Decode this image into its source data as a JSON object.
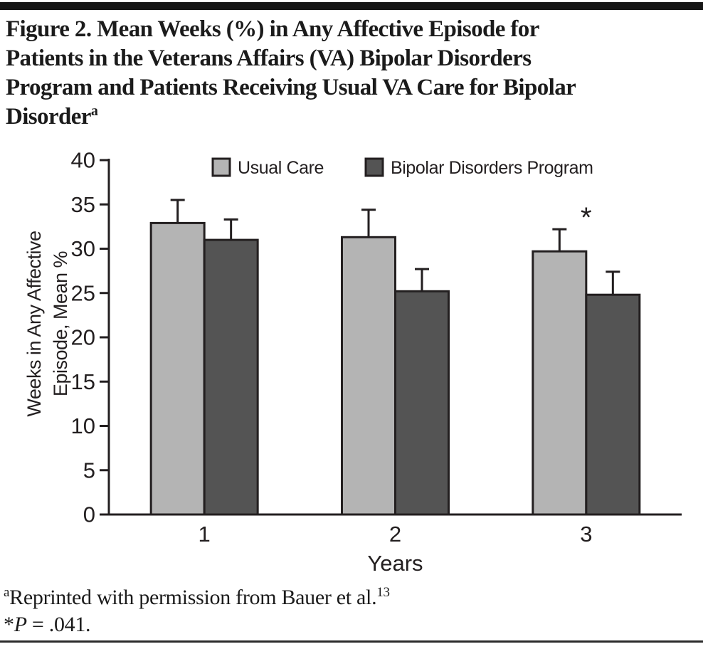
{
  "figure": {
    "title_lines": [
      "Figure 2. Mean Weeks (%) in Any Affective Episode for",
      "Patients in the Veterans Affairs (VA) Bipolar Disorders",
      "Program and Patients Receiving Usual VA Care for Bipolar"
    ],
    "title_last_line": "Disorder",
    "title_superscript": "a",
    "footnote_a": {
      "marker": "a",
      "text": "Reprinted with permission from Bauer et al.",
      "reference": "13"
    },
    "footnote_p": {
      "star": "*",
      "label": "P",
      "rest": " = .041."
    }
  },
  "chart_data": {
    "type": "bar",
    "title": "",
    "categories": [
      "1",
      "2",
      "3"
    ],
    "series": [
      {
        "name": "Usual Care",
        "color": "#b4b4b4",
        "values": [
          32.9,
          31.3,
          29.7
        ],
        "error_bar_tops": [
          35.5,
          34.4,
          32.2
        ]
      },
      {
        "name": "Bipolar Disorders Program",
        "color": "#545454",
        "values": [
          31.0,
          25.2,
          24.8
        ],
        "error_bar_tops": [
          33.3,
          27.7,
          27.4
        ]
      }
    ],
    "xlabel": "Years",
    "ylabel": "Weeks in Any Affective Episode, Mean %",
    "ylabel_lines": [
      "Weeks in Any Affective",
      "Episode, Mean %"
    ],
    "yticks": [
      0,
      5,
      10,
      15,
      20,
      25,
      30,
      35,
      40
    ],
    "ylim": [
      0,
      40
    ],
    "grid": false,
    "legend_position": "top-inside",
    "annotations": [
      {
        "text": "*",
        "category": "3",
        "y": 34.2
      }
    ]
  }
}
